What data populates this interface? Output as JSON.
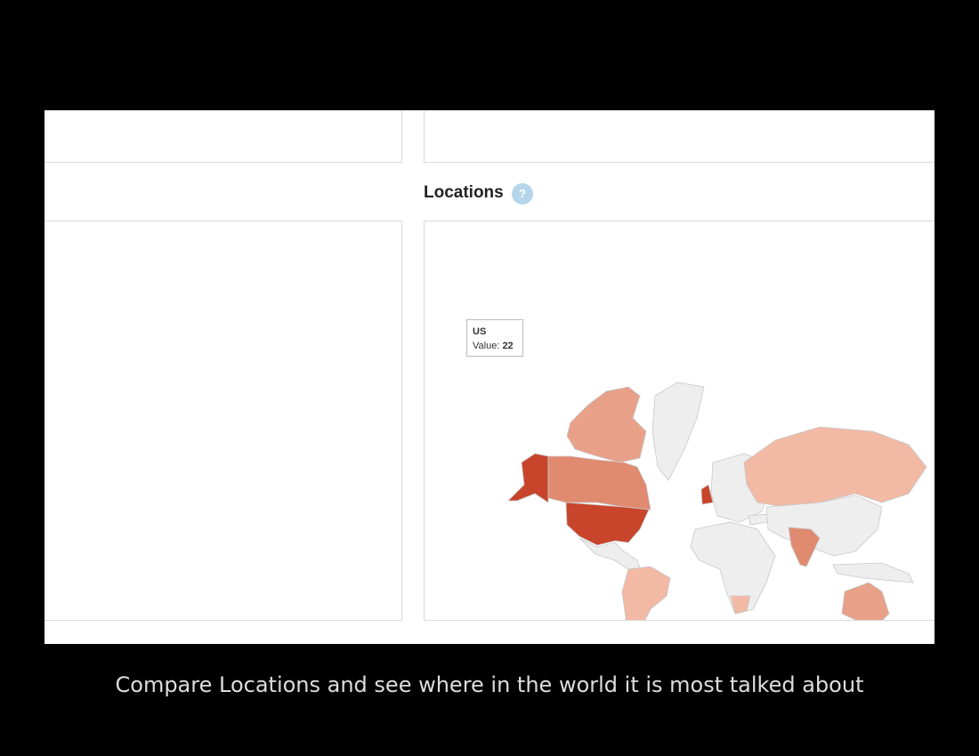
{
  "header": {
    "title": "Locations",
    "help": "?"
  },
  "tooltip": {
    "country": "US",
    "label": "Value:",
    "value": 22
  },
  "caption": "Compare Locations and see where in the world it is most talked about"
}
